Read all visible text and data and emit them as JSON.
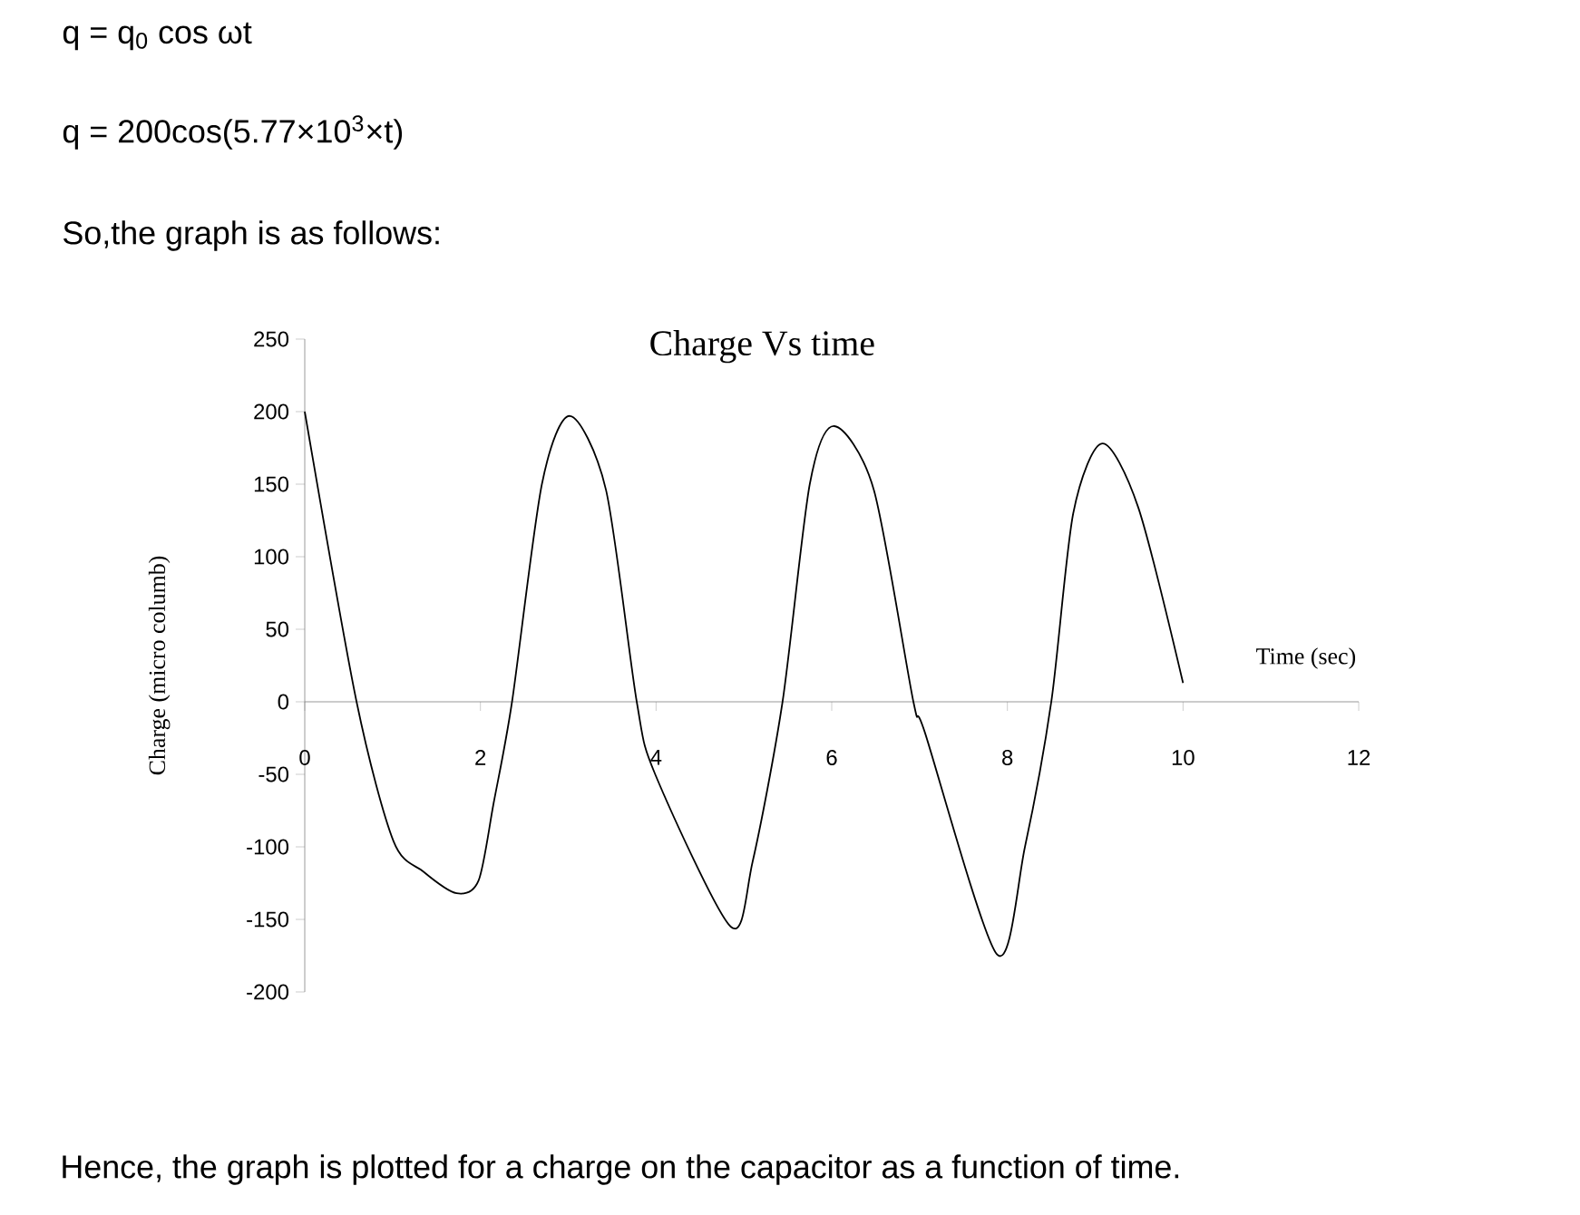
{
  "chart_data": {
    "type": "line",
    "title": "Charge Vs time",
    "xlabel": "Time (sec)",
    "ylabel": "Charge (micro columb)",
    "annotations": [
      "q = q$_{0}$ cos ωt",
      "q = 200cos(5.77×10$^{3}$×t)",
      "So,the graph is as follows:",
      "Hence, the graph is plotted for a charge on the capacitor as a function of time."
    ],
    "x": [
      0,
      0.59,
      1.01,
      1.35,
      1.73,
      1.98,
      2.15,
      2.36,
      2.7,
      3.02,
      3.43,
      3.78,
      3.99,
      4.85,
      5.1,
      5.44,
      5.75,
      6.03,
      6.48,
      6.93,
      7.06,
      7.88,
      8.2,
      8.5,
      8.75,
      9.08,
      9.49,
      10
    ],
    "values": [
      200,
      0,
      -96,
      -117,
      -132,
      -123,
      -70,
      0,
      150,
      197,
      146,
      0,
      -50,
      -155,
      -110,
      0,
      150,
      190,
      146,
      0,
      -21,
      -174,
      -100,
      0,
      130,
      178,
      134,
      13
    ],
    "color": "#000000",
    "xlim": [
      0,
      12
    ],
    "ylim": [
      -200,
      250
    ],
    "xticks": [
      0,
      2,
      4,
      6,
      8,
      10,
      12
    ],
    "yticks": [
      -200,
      -150,
      -100,
      -50,
      0,
      50,
      100,
      150,
      200,
      250
    ]
  }
}
